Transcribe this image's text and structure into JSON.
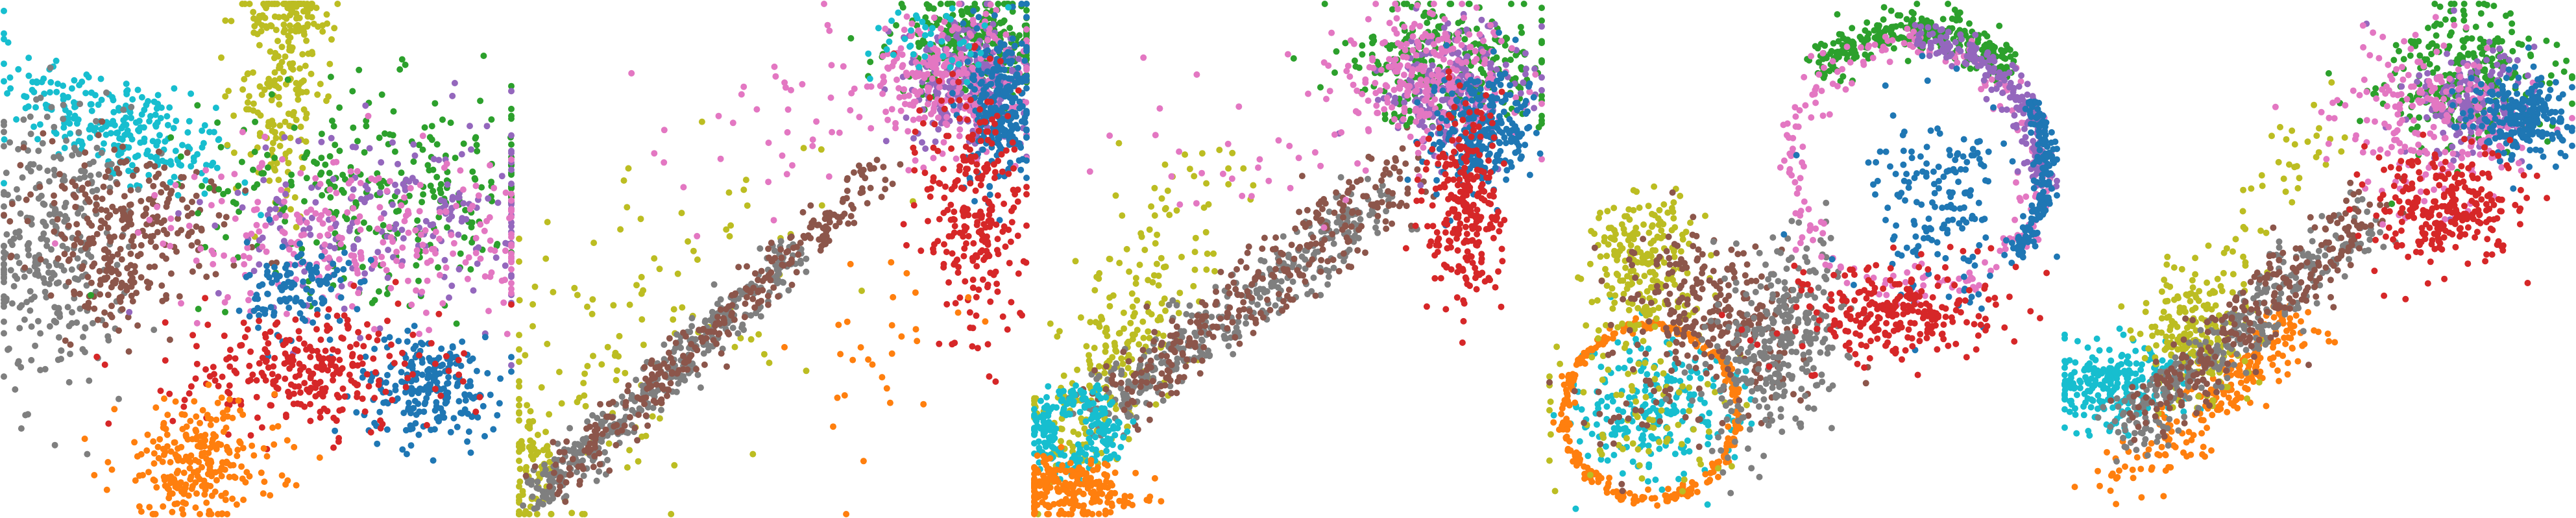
{
  "figure": {
    "caption": ""
  },
  "colors": {
    "c0": "#1f77b4",
    "c1": "#ff7f0e",
    "c2": "#2ca02c",
    "c3": "#d62728",
    "c4": "#9467bd",
    "c5": "#8c564b",
    "c6": "#e377c2",
    "c7": "#7f7f7f",
    "c8": "#bcbd22",
    "c9": "#17becf"
  },
  "chart_data": [
    {
      "type": "scatter",
      "title": "",
      "xlabel": "",
      "ylabel": "",
      "grid": false,
      "legend": "none",
      "xlim": [
        0,
        1
      ],
      "ylim": [
        0,
        1
      ],
      "series": [
        {
          "color": "#17becf",
          "clusters": [
            {
              "kind": "blob",
              "cx": 0.22,
              "cy": 0.76,
              "sx": 0.12,
              "sy": 0.05,
              "rot": -25,
              "n": 260
            }
          ]
        },
        {
          "color": "#7f7f7f",
          "clusters": [
            {
              "kind": "blob",
              "cx": 0.1,
              "cy": 0.52,
              "sx": 0.07,
              "sy": 0.14,
              "rot": 0,
              "n": 300
            }
          ]
        },
        {
          "color": "#8c564b",
          "clusters": [
            {
              "kind": "blob",
              "cx": 0.25,
              "cy": 0.58,
              "sx": 0.1,
              "sy": 0.07,
              "rot": -15,
              "n": 220
            },
            {
              "kind": "blob",
              "cx": 0.2,
              "cy": 0.45,
              "sx": 0.05,
              "sy": 0.05,
              "rot": 0,
              "n": 80
            }
          ]
        },
        {
          "color": "#bcbd22",
          "clusters": [
            {
              "kind": "blob",
              "cx": 0.55,
              "cy": 0.85,
              "sx": 0.04,
              "sy": 0.14,
              "rot": -5,
              "n": 200
            },
            {
              "kind": "blob",
              "cx": 0.57,
              "cy": 0.97,
              "sx": 0.05,
              "sy": 0.02,
              "rot": 0,
              "n": 60
            }
          ]
        },
        {
          "color": "#2ca02c",
          "clusters": [
            {
              "kind": "blob",
              "cx": 0.75,
              "cy": 0.64,
              "sx": 0.18,
              "sy": 0.1,
              "rot": 0,
              "n": 280
            }
          ]
        },
        {
          "color": "#9467bd",
          "clusters": [
            {
              "kind": "blob",
              "cx": 0.78,
              "cy": 0.58,
              "sx": 0.18,
              "sy": 0.1,
              "rot": 0,
              "n": 200
            }
          ]
        },
        {
          "color": "#e377c2",
          "clusters": [
            {
              "kind": "blob",
              "cx": 0.7,
              "cy": 0.55,
              "sx": 0.2,
              "sy": 0.08,
              "rot": 0,
              "n": 260
            }
          ]
        },
        {
          "color": "#1f77b4",
          "clusters": [
            {
              "kind": "blob",
              "cx": 0.58,
              "cy": 0.44,
              "sx": 0.05,
              "sy": 0.05,
              "rot": 0,
              "n": 120
            },
            {
              "kind": "blob",
              "cx": 0.84,
              "cy": 0.25,
              "sx": 0.07,
              "sy": 0.05,
              "rot": 0,
              "n": 220
            }
          ]
        },
        {
          "color": "#d62728",
          "clusters": [
            {
              "kind": "blob",
              "cx": 0.6,
              "cy": 0.28,
              "sx": 0.13,
              "sy": 0.06,
              "rot": 0,
              "n": 280
            }
          ]
        },
        {
          "color": "#ff7f0e",
          "clusters": [
            {
              "kind": "blob",
              "cx": 0.38,
              "cy": 0.1,
              "sx": 0.08,
              "sy": 0.06,
              "rot": 0,
              "n": 260
            }
          ]
        }
      ]
    },
    {
      "type": "scatter",
      "title": "",
      "xlabel": "",
      "ylabel": "",
      "grid": false,
      "legend": "none",
      "xlim": [
        0,
        1
      ],
      "ylim": [
        0,
        1
      ],
      "series": [
        {
          "color": "#bcbd22",
          "clusters": [
            {
              "kind": "blob",
              "cx": 0.18,
              "cy": 0.3,
              "sx": 0.14,
              "sy": 0.22,
              "rot": -40,
              "n": 140
            },
            {
              "kind": "blob",
              "cx": 0.03,
              "cy": 0.1,
              "sx": 0.02,
              "sy": 0.06,
              "rot": 0,
              "n": 60
            }
          ]
        },
        {
          "color": "#7f7f7f",
          "clusters": [
            {
              "kind": "line",
              "x0": 0.02,
              "y0": 0.02,
              "x1": 0.55,
              "y1": 0.52,
              "spread": 0.02,
              "n": 380
            }
          ]
        },
        {
          "color": "#8c564b",
          "clusters": [
            {
              "kind": "line",
              "x0": 0.05,
              "y0": 0.05,
              "x1": 0.72,
              "y1": 0.68,
              "spread": 0.022,
              "n": 300
            }
          ]
        },
        {
          "color": "#2ca02c",
          "clusters": [
            {
              "kind": "blob",
              "cx": 0.9,
              "cy": 0.92,
              "sx": 0.08,
              "sy": 0.05,
              "rot": 0,
              "n": 280
            }
          ]
        },
        {
          "color": "#9467bd",
          "clusters": [
            {
              "kind": "blob",
              "cx": 0.88,
              "cy": 0.85,
              "sx": 0.06,
              "sy": 0.06,
              "rot": 0,
              "n": 240
            }
          ]
        },
        {
          "color": "#e377c2",
          "clusters": [
            {
              "kind": "blob",
              "cx": 0.85,
              "cy": 0.86,
              "sx": 0.08,
              "sy": 0.06,
              "rot": 0,
              "n": 260
            },
            {
              "kind": "blob",
              "cx": 0.5,
              "cy": 0.75,
              "sx": 0.14,
              "sy": 0.1,
              "rot": 0,
              "n": 40
            }
          ]
        },
        {
          "color": "#1f77b4",
          "clusters": [
            {
              "kind": "blob",
              "cx": 0.95,
              "cy": 0.8,
              "sx": 0.03,
              "sy": 0.08,
              "rot": 0,
              "n": 260
            }
          ]
        },
        {
          "color": "#d62728",
          "clusters": [
            {
              "kind": "blob",
              "cx": 0.9,
              "cy": 0.6,
              "sx": 0.05,
              "sy": 0.14,
              "rot": 0,
              "n": 260
            }
          ]
        },
        {
          "color": "#17becf",
          "clusters": [
            {
              "kind": "blob",
              "cx": 0.8,
              "cy": 0.92,
              "sx": 0.06,
              "sy": 0.04,
              "rot": 0,
              "n": 40
            }
          ]
        },
        {
          "color": "#ff7f0e",
          "clusters": [
            {
              "kind": "blob",
              "cx": 0.7,
              "cy": 0.35,
              "sx": 0.08,
              "sy": 0.1,
              "rot": 0,
              "n": 30
            }
          ]
        }
      ]
    },
    {
      "type": "scatter",
      "title": "",
      "xlabel": "",
      "ylabel": "",
      "grid": false,
      "legend": "none",
      "xlim": [
        0,
        1
      ],
      "ylim": [
        0,
        1
      ],
      "series": [
        {
          "color": "#bcbd22",
          "clusters": [
            {
              "kind": "blob",
              "cx": 0.15,
              "cy": 0.3,
              "sx": 0.05,
              "sy": 0.12,
              "rot": -30,
              "n": 200
            },
            {
              "kind": "blob",
              "cx": 0.25,
              "cy": 0.55,
              "sx": 0.08,
              "sy": 0.14,
              "rot": -35,
              "n": 60
            }
          ]
        },
        {
          "color": "#7f7f7f",
          "clusters": [
            {
              "kind": "line",
              "x0": 0.12,
              "y0": 0.2,
              "x1": 0.7,
              "y1": 0.62,
              "spread": 0.03,
              "n": 350
            }
          ]
        },
        {
          "color": "#8c564b",
          "clusters": [
            {
              "kind": "line",
              "x0": 0.15,
              "y0": 0.22,
              "x1": 0.75,
              "y1": 0.68,
              "spread": 0.035,
              "n": 300
            }
          ]
        },
        {
          "color": "#17becf",
          "clusters": [
            {
              "kind": "ring",
              "cx": 0.08,
              "cy": 0.16,
              "r": 0.07,
              "spread": 0.018,
              "n": 220
            }
          ]
        },
        {
          "color": "#ff7f0e",
          "clusters": [
            {
              "kind": "blob",
              "cx": 0.06,
              "cy": 0.05,
              "sx": 0.06,
              "sy": 0.03,
              "rot": 0,
              "n": 220
            }
          ]
        },
        {
          "color": "#2ca02c",
          "clusters": [
            {
              "kind": "blob",
              "cx": 0.82,
              "cy": 0.88,
              "sx": 0.1,
              "sy": 0.06,
              "rot": 0,
              "n": 280
            }
          ]
        },
        {
          "color": "#9467bd",
          "clusters": [
            {
              "kind": "blob",
              "cx": 0.83,
              "cy": 0.84,
              "sx": 0.07,
              "sy": 0.06,
              "rot": 0,
              "n": 200
            }
          ]
        },
        {
          "color": "#e377c2",
          "clusters": [
            {
              "kind": "blob",
              "cx": 0.78,
              "cy": 0.86,
              "sx": 0.09,
              "sy": 0.07,
              "rot": 0,
              "n": 260
            },
            {
              "kind": "blob",
              "cx": 0.45,
              "cy": 0.7,
              "sx": 0.12,
              "sy": 0.08,
              "rot": 0,
              "n": 30
            }
          ]
        },
        {
          "color": "#1f77b4",
          "clusters": [
            {
              "kind": "blob",
              "cx": 0.88,
              "cy": 0.76,
              "sx": 0.05,
              "sy": 0.06,
              "rot": 0,
              "n": 260
            }
          ]
        },
        {
          "color": "#d62728",
          "clusters": [
            {
              "kind": "blob",
              "cx": 0.85,
              "cy": 0.6,
              "sx": 0.04,
              "sy": 0.1,
              "rot": 0,
              "n": 260
            }
          ]
        }
      ]
    },
    {
      "type": "scatter",
      "title": "",
      "xlabel": "",
      "ylabel": "",
      "grid": false,
      "legend": "none",
      "xlim": [
        0,
        1
      ],
      "ylim": [
        0,
        1
      ],
      "series": [
        {
          "color": "#17becf",
          "clusters": [
            {
              "kind": "blob",
              "cx": 0.2,
              "cy": 0.2,
              "sx": 0.08,
              "sy": 0.07,
              "rot": 0,
              "n": 220
            }
          ]
        },
        {
          "color": "#ff7f0e",
          "clusters": [
            {
              "kind": "ring",
              "cx": 0.2,
              "cy": 0.2,
              "r": 0.17,
              "spread": 0.006,
              "n": 320
            }
          ]
        },
        {
          "color": "#bcbd22",
          "clusters": [
            {
              "kind": "blob",
              "cx": 0.18,
              "cy": 0.5,
              "sx": 0.05,
              "sy": 0.07,
              "rot": 0,
              "n": 220
            },
            {
              "kind": "blob",
              "cx": 0.2,
              "cy": 0.2,
              "sx": 0.1,
              "sy": 0.09,
              "rot": 0,
              "n": 80
            }
          ]
        },
        {
          "color": "#8c564b",
          "clusters": [
            {
              "kind": "blob",
              "cx": 0.33,
              "cy": 0.4,
              "sx": 0.1,
              "sy": 0.06,
              "rot": -30,
              "n": 260
            },
            {
              "kind": "blob",
              "cx": 0.22,
              "cy": 0.22,
              "sx": 0.09,
              "sy": 0.08,
              "rot": 0,
              "n": 50
            }
          ]
        },
        {
          "color": "#7f7f7f",
          "clusters": [
            {
              "kind": "blob",
              "cx": 0.45,
              "cy": 0.34,
              "sx": 0.06,
              "sy": 0.1,
              "rot": -20,
              "n": 320
            }
          ]
        },
        {
          "color": "#2ca02c",
          "clusters": [
            {
              "kind": "arc",
              "cx": 0.72,
              "cy": 0.7,
              "r": 0.25,
              "a0": 40,
              "a1": 140,
              "spread": 0.02,
              "n": 300
            }
          ]
        },
        {
          "color": "#e377c2",
          "clusters": [
            {
              "kind": "ring",
              "cx": 0.72,
              "cy": 0.68,
              "r": 0.24,
              "spread": 0.02,
              "n": 220
            }
          ]
        },
        {
          "color": "#9467bd",
          "clusters": [
            {
              "kind": "arc",
              "cx": 0.72,
              "cy": 0.68,
              "r": 0.25,
              "a0": -10,
              "a1": 90,
              "spread": 0.015,
              "n": 200
            }
          ]
        },
        {
          "color": "#1f77b4",
          "clusters": [
            {
              "kind": "blob",
              "cx": 0.78,
              "cy": 0.62,
              "sx": 0.08,
              "sy": 0.1,
              "rot": 0,
              "n": 180
            },
            {
              "kind": "arc",
              "cx": 0.72,
              "cy": 0.68,
              "r": 0.26,
              "a0": -40,
              "a1": 30,
              "spread": 0.01,
              "n": 160
            }
          ]
        },
        {
          "color": "#d62728",
          "clusters": [
            {
              "kind": "blob",
              "cx": 0.68,
              "cy": 0.4,
              "sx": 0.1,
              "sy": 0.05,
              "rot": 0,
              "n": 260
            }
          ]
        }
      ]
    },
    {
      "type": "scatter",
      "title": "",
      "xlabel": "",
      "ylabel": "",
      "grid": false,
      "legend": "none",
      "xlim": [
        0,
        1
      ],
      "ylim": [
        0,
        1
      ],
      "series": [
        {
          "color": "#17becf",
          "clusters": [
            {
              "kind": "blob",
              "cx": 0.1,
              "cy": 0.25,
              "sx": 0.07,
              "sy": 0.04,
              "rot": 0,
              "n": 240
            }
          ]
        },
        {
          "color": "#ff7f0e",
          "clusters": [
            {
              "kind": "line",
              "x0": 0.08,
              "y0": 0.04,
              "x1": 0.48,
              "y1": 0.38,
              "spread": 0.03,
              "n": 220
            }
          ]
        },
        {
          "color": "#bcbd22",
          "clusters": [
            {
              "kind": "blob",
              "cx": 0.25,
              "cy": 0.35,
              "sx": 0.05,
              "sy": 0.06,
              "rot": 0,
              "n": 200
            },
            {
              "kind": "line",
              "x0": 0.25,
              "y0": 0.4,
              "x1": 0.5,
              "y1": 0.75,
              "spread": 0.04,
              "n": 60
            }
          ]
        },
        {
          "color": "#7f7f7f",
          "clusters": [
            {
              "kind": "line",
              "x0": 0.1,
              "y0": 0.15,
              "x1": 0.6,
              "y1": 0.58,
              "spread": 0.03,
              "n": 340
            }
          ]
        },
        {
          "color": "#8c564b",
          "clusters": [
            {
              "kind": "line",
              "x0": 0.15,
              "y0": 0.2,
              "x1": 0.62,
              "y1": 0.6,
              "spread": 0.035,
              "n": 260
            }
          ]
        },
        {
          "color": "#2ca02c",
          "clusters": [
            {
              "kind": "blob",
              "cx": 0.78,
              "cy": 0.85,
              "sx": 0.09,
              "sy": 0.07,
              "rot": 0,
              "n": 280
            }
          ]
        },
        {
          "color": "#9467bd",
          "clusters": [
            {
              "kind": "blob",
              "cx": 0.8,
              "cy": 0.8,
              "sx": 0.06,
              "sy": 0.06,
              "rot": 0,
              "n": 180
            }
          ]
        },
        {
          "color": "#e377c2",
          "clusters": [
            {
              "kind": "blob",
              "cx": 0.72,
              "cy": 0.78,
              "sx": 0.1,
              "sy": 0.08,
              "rot": 0,
              "n": 240
            }
          ]
        },
        {
          "color": "#1f77b4",
          "clusters": [
            {
              "kind": "blob",
              "cx": 0.9,
              "cy": 0.78,
              "sx": 0.05,
              "sy": 0.04,
              "rot": 0,
              "n": 240
            }
          ]
        },
        {
          "color": "#d62728",
          "clusters": [
            {
              "kind": "blob",
              "cx": 0.75,
              "cy": 0.6,
              "sx": 0.08,
              "sy": 0.06,
              "rot": 0,
              "n": 260
            }
          ]
        }
      ]
    }
  ]
}
